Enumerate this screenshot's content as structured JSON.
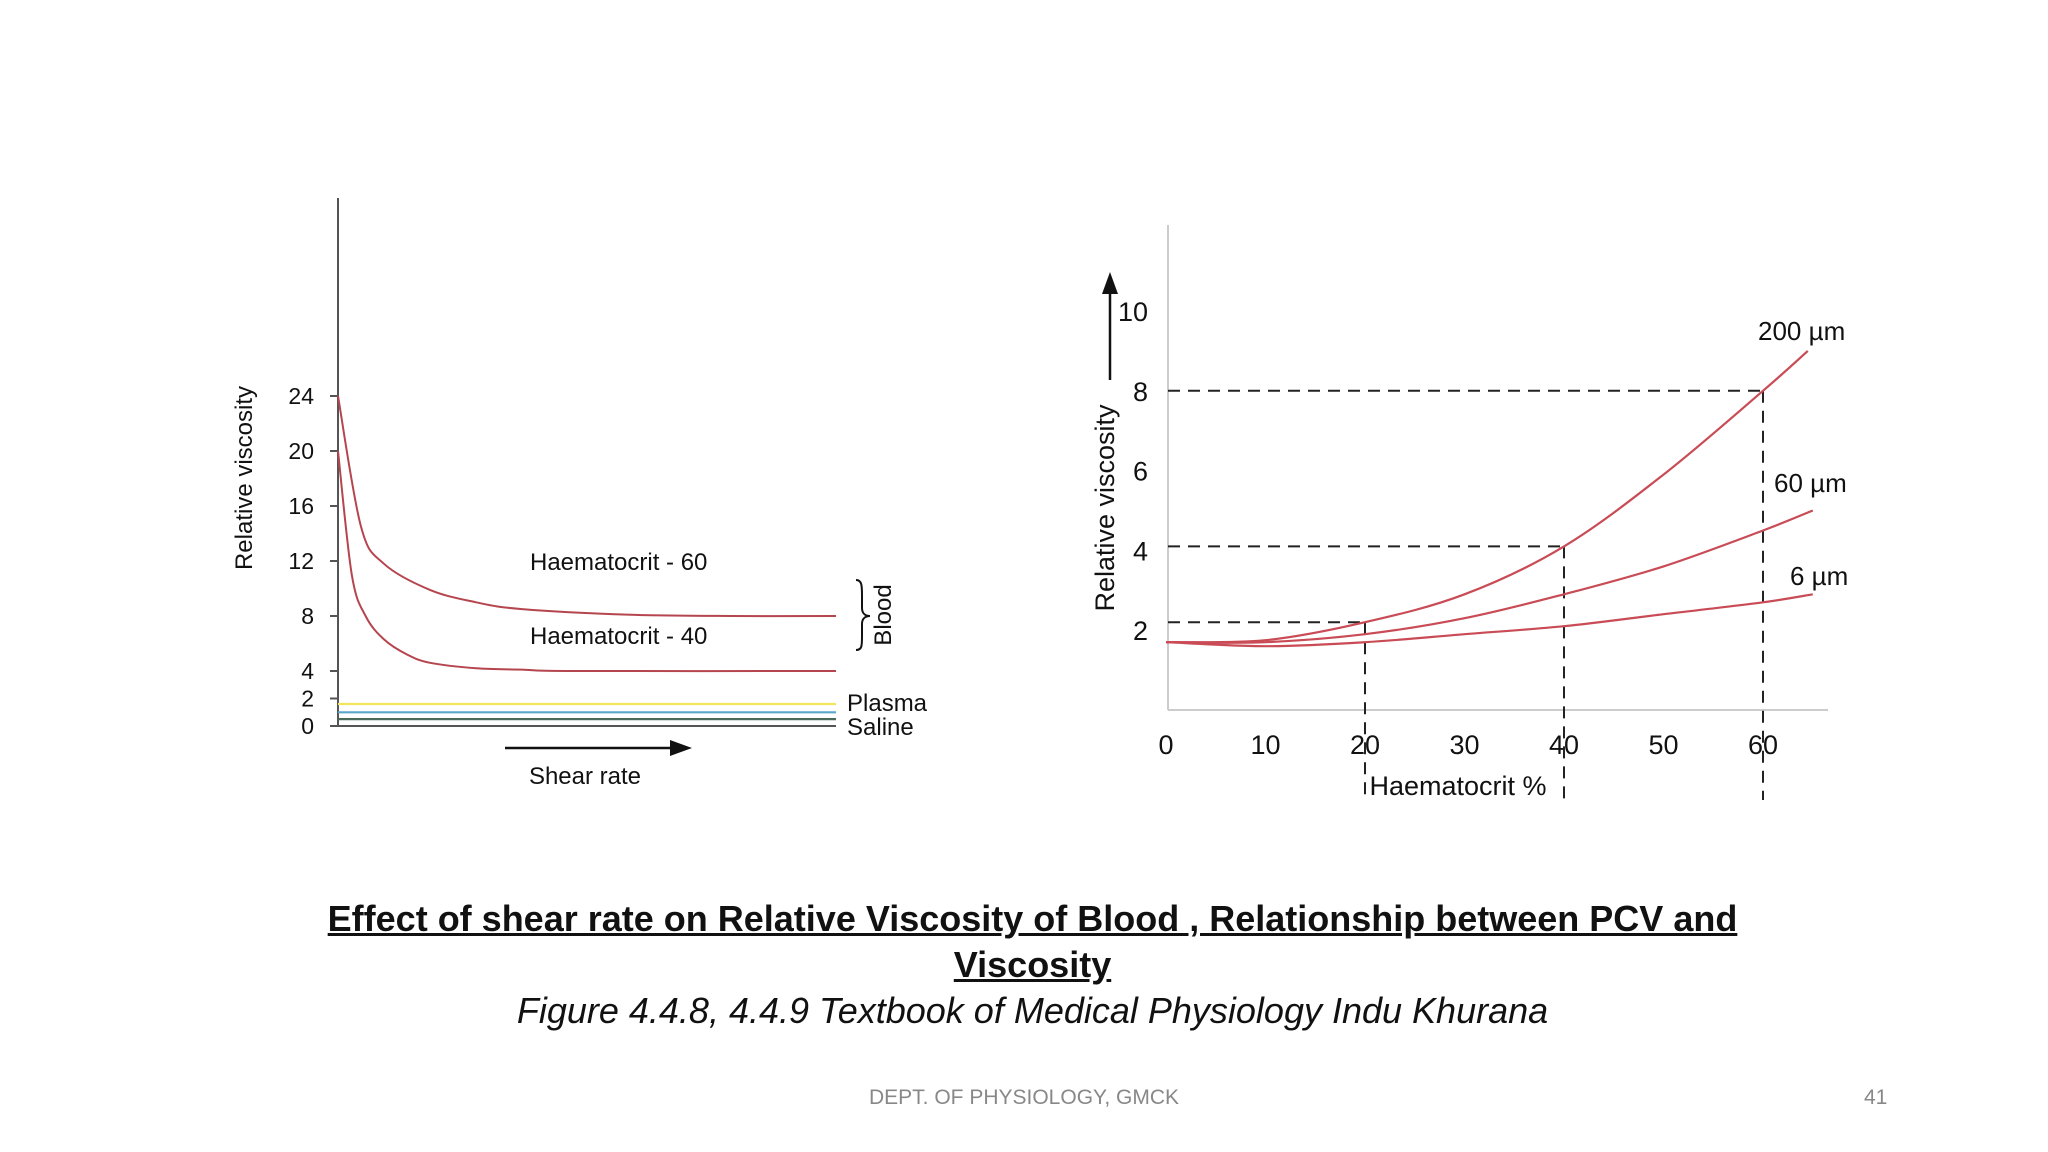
{
  "chart_data": [
    {
      "type": "line",
      "ylabel": "Relative viscosity",
      "xlabel": "Shear rate",
      "yticks": [
        0,
        2,
        4,
        8,
        12,
        16,
        20,
        24
      ],
      "ylim": [
        0,
        28
      ],
      "grid": false,
      "series": [
        {
          "name": "Haematocrit - 60",
          "color": "#b5454f",
          "x": [
            0,
            0.5,
            1,
            2,
            3,
            4,
            6,
            8,
            10
          ],
          "values": [
            24,
            14.5,
            11.8,
            9.9,
            9.0,
            8.5,
            8.1,
            8.0,
            8.0
          ]
        },
        {
          "name": "Haematocrit - 40",
          "color": "#b5454f",
          "x": [
            0,
            0.3,
            0.6,
            1,
            1.5,
            2,
            3,
            4,
            5,
            10
          ],
          "values": [
            20,
            11,
            8,
            6.3,
            5.2,
            4.6,
            4.2,
            4.1,
            4.0,
            4.0
          ]
        },
        {
          "name": "Plasma",
          "color": "#f2e45c",
          "x": [
            0,
            10
          ],
          "values": [
            1.6,
            1.6
          ]
        },
        {
          "name": "",
          "color": "#5aa8c8",
          "x": [
            0,
            10
          ],
          "values": [
            1.0,
            1.0
          ]
        },
        {
          "name": "Saline",
          "color": "#4a6a5a",
          "x": [
            0,
            10
          ],
          "values": [
            0.5,
            0.5
          ]
        }
      ],
      "annotations": [
        "Blood"
      ]
    },
    {
      "type": "line",
      "ylabel": "Relative viscosity",
      "xlabel": "Haematocrit %",
      "xticks": [
        0,
        10,
        20,
        30,
        40,
        50,
        60
      ],
      "yticks": [
        2,
        4,
        6,
        8,
        10
      ],
      "xlim": [
        0,
        66
      ],
      "ylim": [
        0,
        12
      ],
      "grid": false,
      "series": [
        {
          "name": "200 µm",
          "color": "#c94b55",
          "x": [
            0,
            10,
            20,
            30,
            40,
            50,
            60,
            64.5
          ],
          "values": [
            1.7,
            1.75,
            2.2,
            2.9,
            4.1,
            5.9,
            8.0,
            9.0
          ]
        },
        {
          "name": "60 µm",
          "color": "#c94b55",
          "x": [
            0,
            10,
            20,
            30,
            40,
            50,
            60,
            65
          ],
          "values": [
            1.7,
            1.7,
            1.9,
            2.3,
            2.9,
            3.6,
            4.5,
            5.0
          ]
        },
        {
          "name": "6 µm",
          "color": "#c94b55",
          "x": [
            0,
            10,
            20,
            30,
            40,
            50,
            60,
            65
          ],
          "values": [
            1.7,
            1.6,
            1.7,
            1.9,
            2.1,
            2.4,
            2.7,
            2.9
          ]
        }
      ],
      "reference_points": [
        {
          "x": 20,
          "y": 2.2
        },
        {
          "x": 40,
          "y": 4.1
        },
        {
          "x": 60,
          "y": 8.0
        }
      ]
    }
  ],
  "caption": {
    "title_line1": "Effect of shear rate on Relative Viscosity of Blood , Relationship between PCV and",
    "title_line2": "Viscosity",
    "source": "Figure 4.4.8, 4.4.9 Textbook of Medical Physiology Indu Khurana"
  },
  "footer": {
    "department": "DEPT. OF PHYSIOLOGY, GMCK",
    "slide_number": "41"
  }
}
